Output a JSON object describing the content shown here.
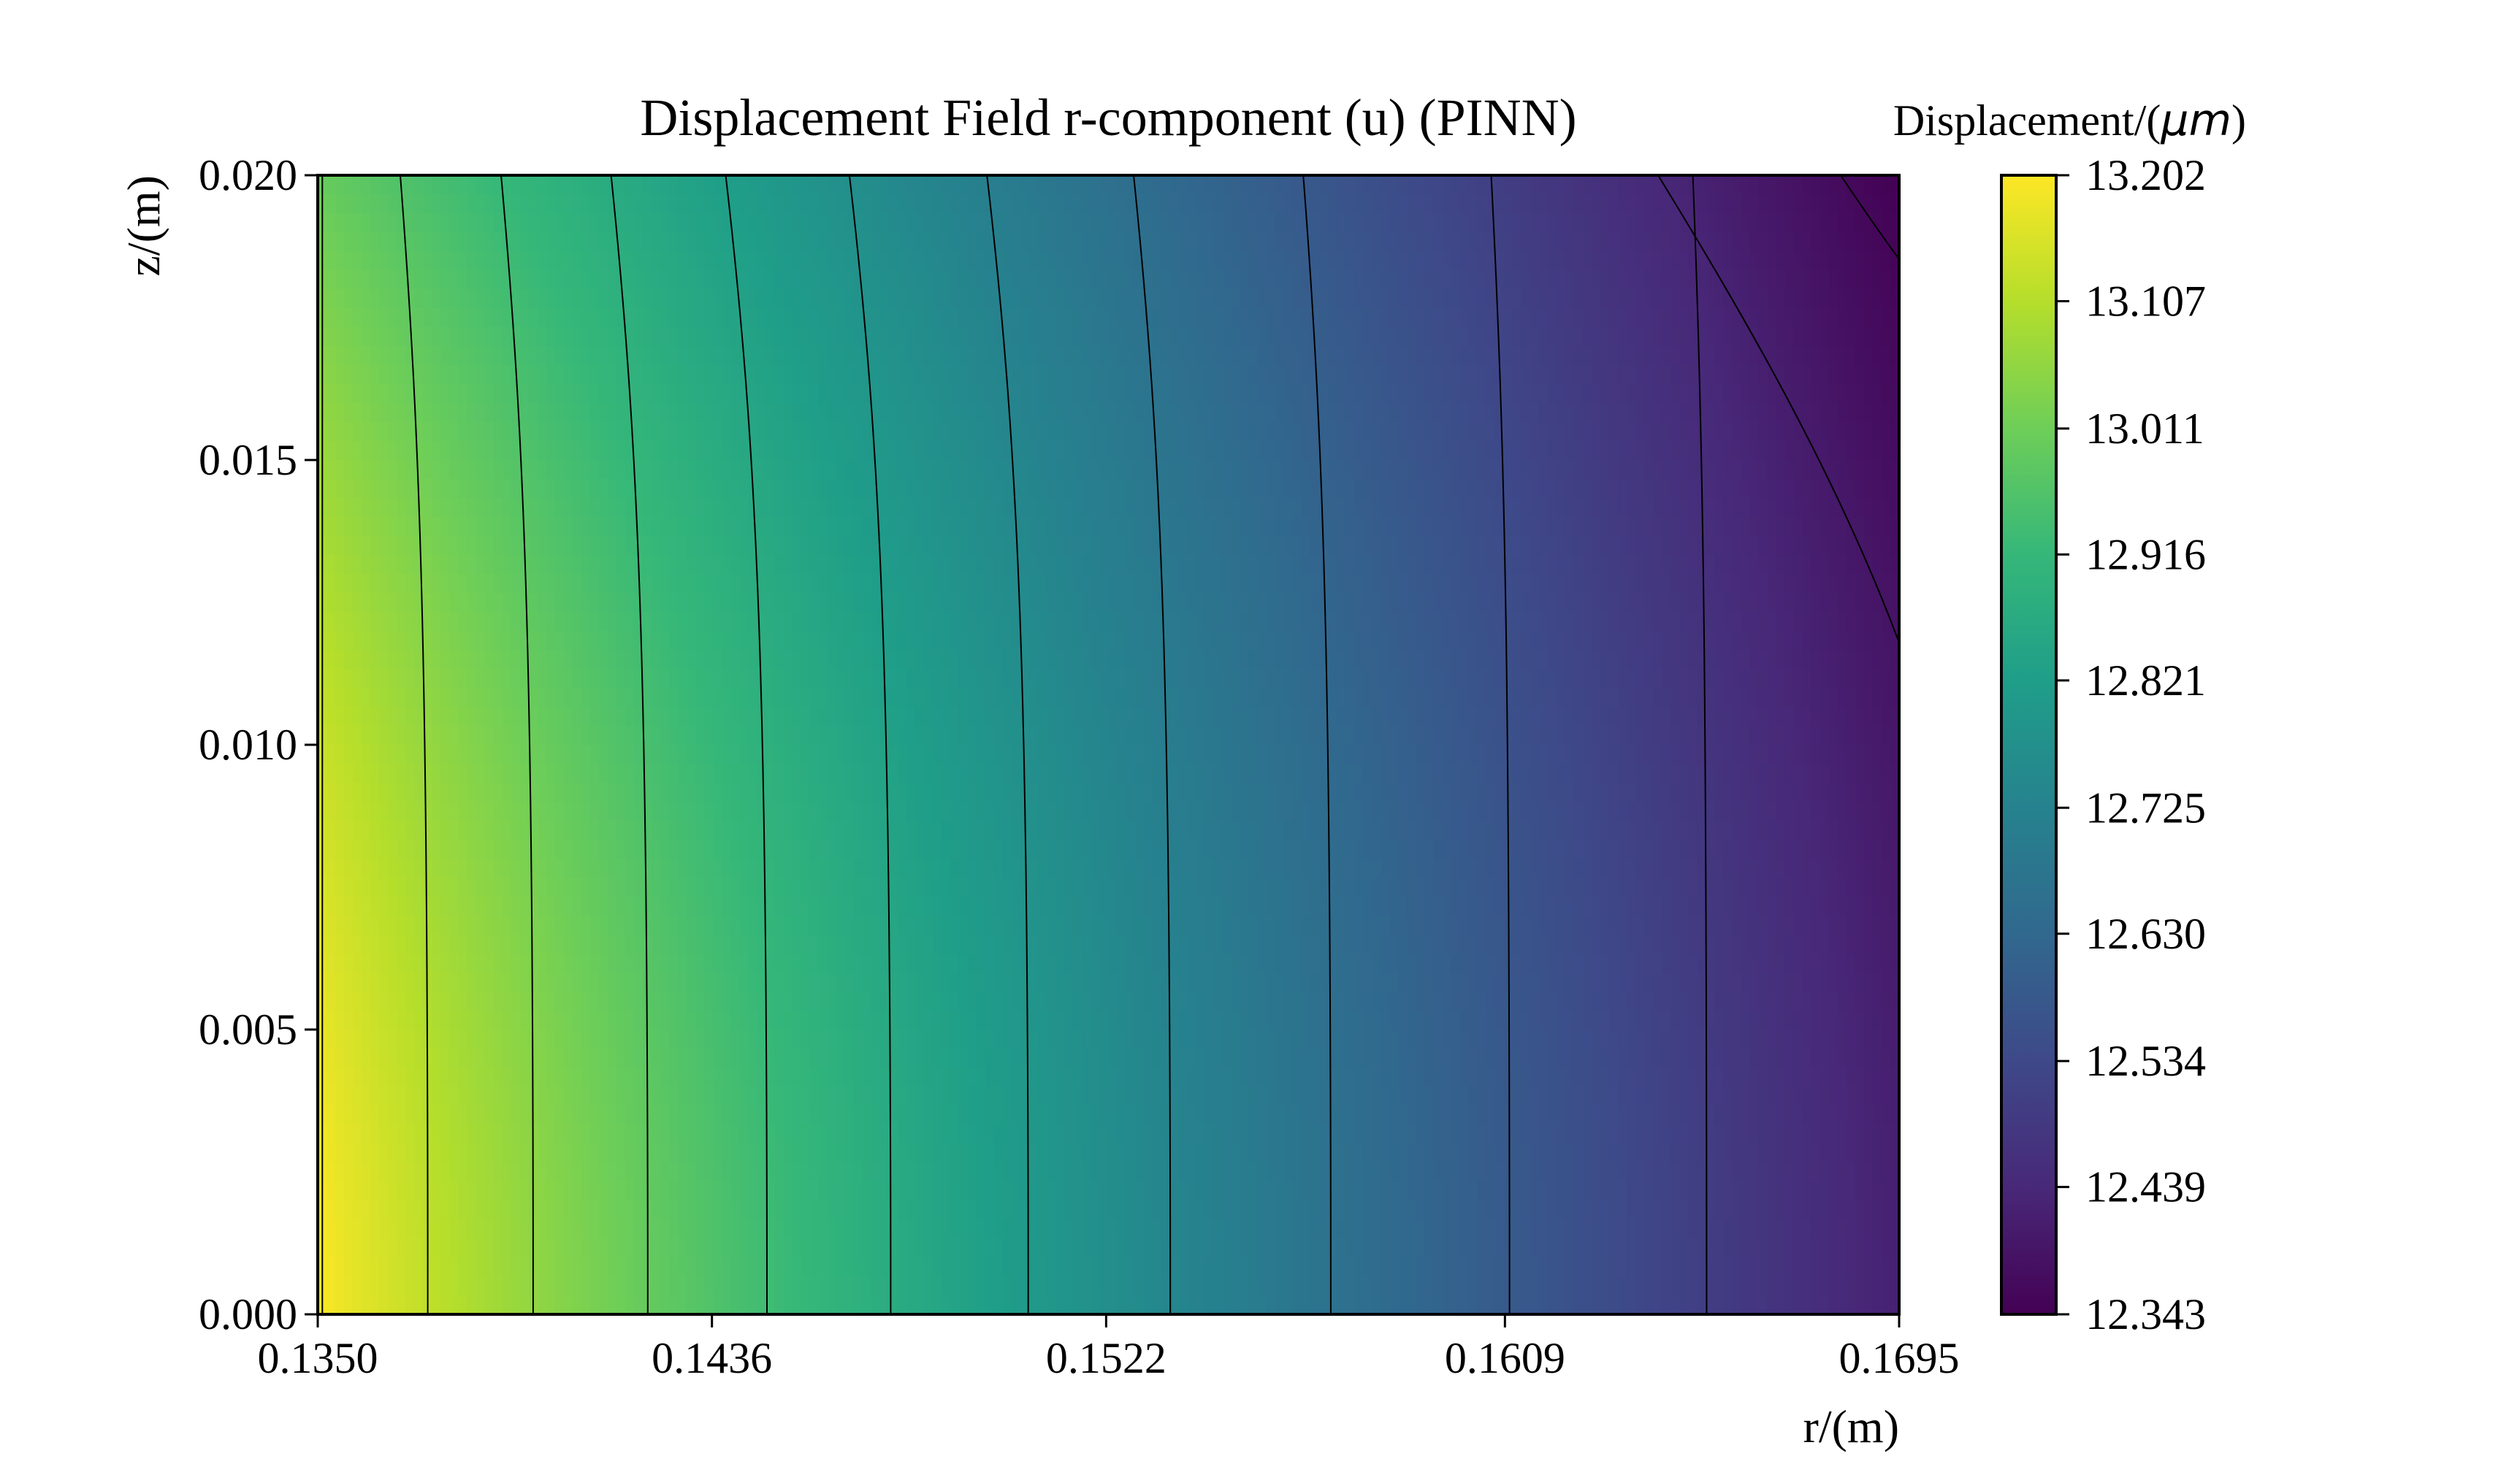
{
  "chart_data": {
    "type": "heatmap",
    "subtype": "filled-contour",
    "title": "Displacement Field r-component (u) (PINN)",
    "xlabel": "r/(m)",
    "ylabel": "z/(m)",
    "xlim": [
      0.135,
      0.1695
    ],
    "ylim": [
      0.0,
      0.02
    ],
    "x_ticks": [
      "0.1350",
      "0.1436",
      "0.1522",
      "0.1609",
      "0.1695"
    ],
    "y_ticks": [
      "0.000",
      "0.005",
      "0.010",
      "0.015",
      "0.020"
    ],
    "colormap": "viridis",
    "colorbar": {
      "title": "Displacement/(μm)",
      "title_prefix": "Displacement/(",
      "title_unit": "μm",
      "title_suffix": ")",
      "range": [
        12.343,
        13.202
      ],
      "ticks": [
        "12.343",
        "12.439",
        "12.534",
        "12.630",
        "12.725",
        "12.821",
        "12.916",
        "13.011",
        "13.107",
        "13.202"
      ]
    },
    "contour_crossings_at_z0": [
      0.1351,
      0.1374,
      0.1397,
      0.1422,
      0.1448,
      0.1475,
      0.1505,
      0.1536,
      0.1571,
      0.161,
      0.1653
    ],
    "contour_crossings_at_zmax": [
      0.1351,
      0.1368,
      0.139,
      0.1414,
      0.1439,
      0.1466,
      0.1496,
      0.1528,
      0.1565,
      0.1606,
      0.165
    ],
    "corner_values": {
      "r_min_z_min": 13.202,
      "r_min_z_max": 13.0,
      "r_max_z_min": 12.42,
      "r_max_z_max": 12.343
    },
    "grid": false,
    "legend": "none"
  }
}
